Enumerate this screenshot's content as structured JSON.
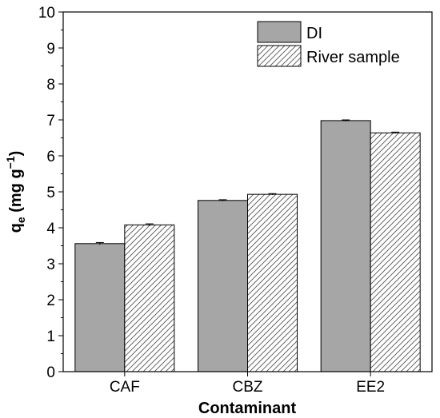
{
  "chart_data": {
    "type": "bar",
    "categories": [
      "CAF",
      "CBZ",
      "EE2"
    ],
    "series": [
      {
        "name": "DI",
        "values": [
          3.56,
          4.76,
          6.98
        ],
        "errors": [
          0.03,
          0.02,
          0.02
        ],
        "fill": "#a6a6a6",
        "pattern": "solid"
      },
      {
        "name": "River sample",
        "values": [
          4.08,
          4.93,
          6.64
        ],
        "errors": [
          0.03,
          0.02,
          0.02
        ],
        "fill": "#ffffff",
        "pattern": "diagonal-hatch"
      }
    ],
    "xlabel": "Contaminant",
    "ylabel": {
      "main": "q",
      "sub": "e",
      "units": " (mg g",
      "sup": "−1",
      "close": ")"
    },
    "ylim": [
      0,
      10
    ],
    "yticks": [
      0,
      1,
      2,
      3,
      4,
      5,
      6,
      7,
      8,
      9,
      10
    ],
    "grid": false,
    "legend_position": "top-right",
    "colors": {
      "bar_outline": "#000000",
      "hatch": "#555555"
    }
  }
}
